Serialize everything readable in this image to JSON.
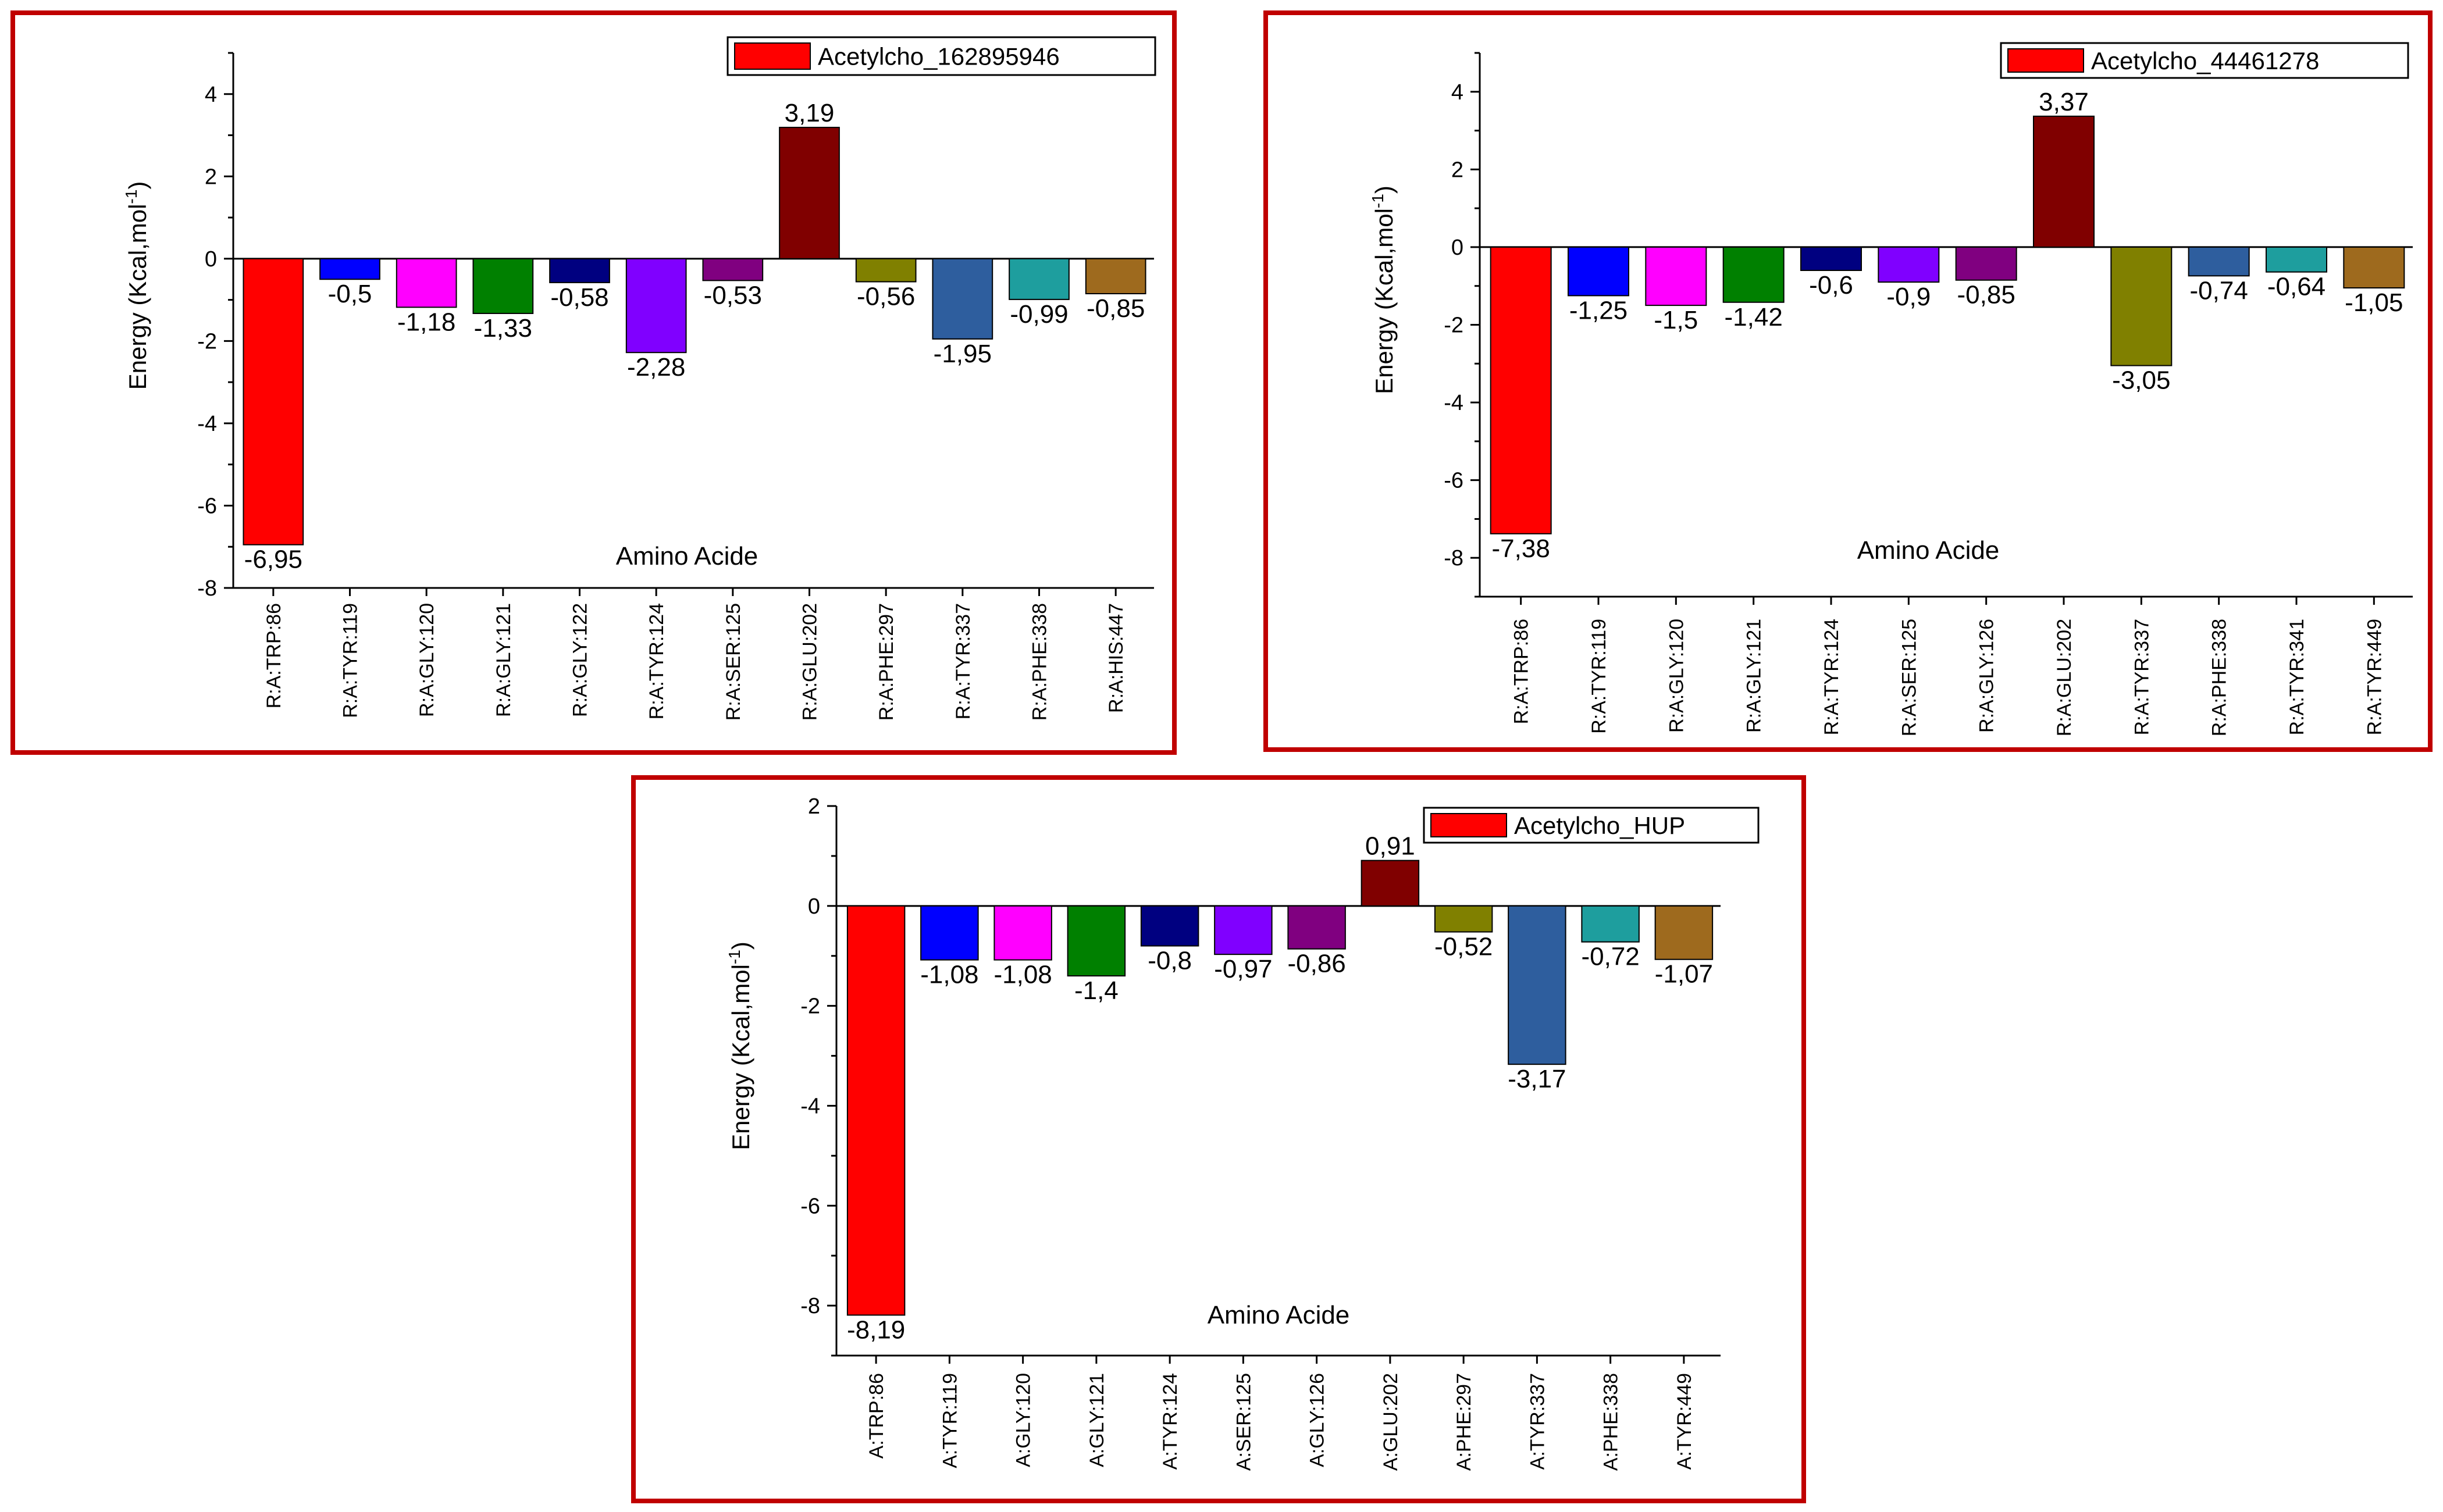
{
  "chart_data": [
    {
      "type": "bar",
      "legend": "Acetylcho_162895946",
      "legend_position": "top-right",
      "xlabel": "Amino Acide",
      "ylabel": "Energy (Kcal,mol",
      "ylabel_sup": "-1",
      "ylabel_close": ")",
      "ylim": [
        -8,
        5
      ],
      "yticks": [
        "4",
        "2",
        "0",
        "-2",
        "-4",
        "-6",
        "-8"
      ],
      "categories": [
        "R:A:TRP:86",
        "R:A:TYR:119",
        "R:A:GLY:120",
        "R:A:GLY:121",
        "R:A:GLY:122",
        "R:A:TYR:124",
        "R:A:SER:125",
        "R:A:GLU:202",
        "R:A:PHE:297",
        "R:A:TYR:337",
        "R:A:PHE:338",
        "R:A:HIS:447"
      ],
      "values": [
        -6.95,
        -0.5,
        -1.18,
        -1.33,
        -0.58,
        -2.28,
        -0.53,
        3.19,
        -0.56,
        -1.95,
        -0.99,
        -0.85
      ],
      "labels": [
        "-6,95",
        "-0,5",
        "-1,18",
        "-1,33",
        "-0,58",
        "-2,28",
        "-0,53",
        "3,19",
        "-0,56",
        "-1,95",
        "-0,99",
        "-0,85"
      ],
      "colors": [
        "#FF0000",
        "#0000FF",
        "#FF00FF",
        "#008000",
        "#000080",
        "#8000FF",
        "#800080",
        "#800000",
        "#808000",
        "#2E5E9E",
        "#1E9E9E",
        "#9E6A1E"
      ]
    },
    {
      "type": "bar",
      "legend": "Acetylcho_44461278",
      "legend_position": "top-right",
      "xlabel": "Amino Acide",
      "ylabel": "Energy (Kcal,mol",
      "ylabel_sup": "-1",
      "ylabel_close": ")",
      "ylim": [
        -9,
        5
      ],
      "yticks": [
        "4",
        "2",
        "0",
        "-2",
        "-4",
        "-6",
        "-8"
      ],
      "categories": [
        "R:A:TRP:86",
        "R:A:TYR:119",
        "R:A:GLY:120",
        "R:A:GLY:121",
        "R:A:TYR:124",
        "R:A:SER:125",
        "R:A:GLY:126",
        "R:A:GLU:202",
        "R:A:TYR:337",
        "R:A:PHE:338",
        "R:A:TYR:341",
        "R:A:TYR:449"
      ],
      "values": [
        -7.38,
        -1.25,
        -1.5,
        -1.42,
        -0.6,
        -0.9,
        -0.85,
        3.37,
        -3.05,
        -0.74,
        -0.64,
        -1.05
      ],
      "labels": [
        "-7,38",
        "-1,25",
        "-1,5",
        "-1,42",
        "-0,6",
        "-0,9",
        "-0,85",
        "3,37",
        "-3,05",
        "-0,74",
        "-0,64",
        "-1,05"
      ],
      "colors": [
        "#FF0000",
        "#0000FF",
        "#FF00FF",
        "#008000",
        "#000080",
        "#8000FF",
        "#800080",
        "#800000",
        "#808000",
        "#2E5E9E",
        "#1E9E9E",
        "#9E6A1E"
      ]
    },
    {
      "type": "bar",
      "legend": "Acetylcho_HUP",
      "legend_position": "top-right",
      "xlabel": "Amino Acide",
      "ylabel": "Energy (Kcal,mol",
      "ylabel_sup": "-1",
      "ylabel_close": ")",
      "ylim": [
        -9,
        2
      ],
      "yticks": [
        "2",
        "0",
        "-2",
        "-4",
        "-6",
        "-8"
      ],
      "categories": [
        "A:TRP:86",
        "A:TYR:119",
        "A:GLY:120",
        "A:GLY:121",
        "A:TYR:124",
        "A:SER:125",
        "A:GLY:126",
        "A:GLU:202",
        "A:PHE:297",
        "A:TYR:337",
        "A:PHE:338",
        "A:TYR:449"
      ],
      "values": [
        -8.19,
        -1.08,
        -1.08,
        -1.4,
        -0.8,
        -0.97,
        -0.86,
        0.91,
        -0.52,
        -3.17,
        -0.72,
        -1.07
      ],
      "labels": [
        "-8,19",
        "-1,08",
        "-1,08",
        "-1,4",
        "-0,8",
        "-0,97",
        "-0,86",
        "0,91",
        "-0,52",
        "-3,17",
        "-0,72",
        "-1,07"
      ],
      "colors": [
        "#FF0000",
        "#0000FF",
        "#FF00FF",
        "#008000",
        "#000080",
        "#8000FF",
        "#800080",
        "#800000",
        "#808000",
        "#2E5E9E",
        "#1E9E9E",
        "#9E6A1E"
      ]
    }
  ]
}
